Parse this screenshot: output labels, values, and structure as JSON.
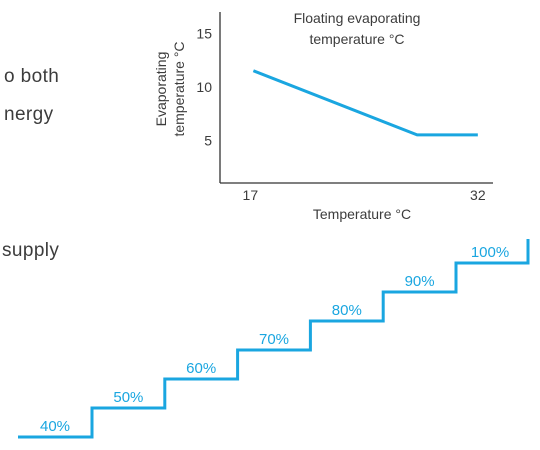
{
  "page": {
    "text_fragments": [
      "o both",
      "nergy",
      "supply"
    ]
  },
  "colors": {
    "accent": "#1aa6e0",
    "axis": "#333333",
    "text": "#3c3c3c"
  },
  "chart_data": [
    {
      "type": "line",
      "title": "Floating evaporating temperature °C",
      "title_lines": [
        "Floating evaporating",
        "temperature °C"
      ],
      "xlabel": "Temperature °C",
      "ylabel": "Evaporating temperature °C",
      "ylabel_lines": [
        "Evaporating",
        "temperature °C"
      ],
      "x_ticks": [
        17,
        32
      ],
      "y_ticks": [
        5,
        10,
        15
      ],
      "xlim": [
        15,
        33
      ],
      "ylim": [
        1,
        17
      ],
      "grid": false,
      "legend": "none",
      "series": [
        {
          "x": [
            17.2,
            28,
            32
          ],
          "y": [
            11.5,
            5.5,
            5.5
          ]
        }
      ]
    },
    {
      "type": "line",
      "title": "",
      "step_labels": [
        "40%",
        "50%",
        "60%",
        "70%",
        "80%",
        "90%",
        "100%"
      ],
      "values": [
        40,
        50,
        60,
        70,
        80,
        90,
        100
      ]
    }
  ]
}
